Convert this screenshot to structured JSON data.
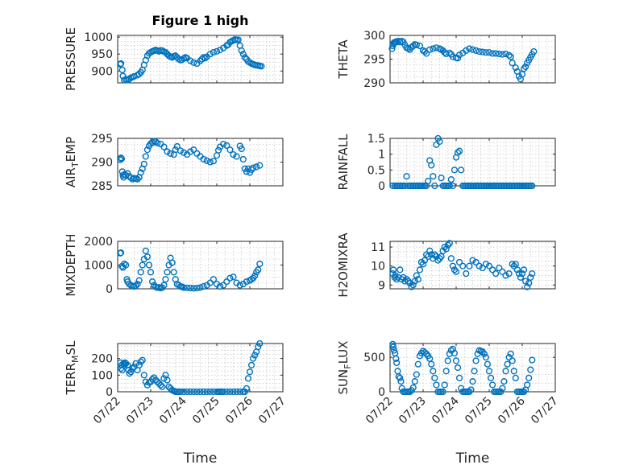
{
  "style": {
    "marker_color": "#0072BD",
    "axis_color": "#262626",
    "grid_color": "#b8b8b8"
  },
  "chart_data": [
    {
      "type": "scatter",
      "title": "Figure 1 high",
      "ylabel": "PRESSURE",
      "ylim": [
        865,
        1005
      ],
      "yticks": [
        900,
        950,
        1000
      ],
      "xlim": [
        0,
        5
      ],
      "xticks": [
        0,
        1,
        2,
        3,
        4,
        5
      ],
      "xticklabels": [],
      "grid": true,
      "x": [
        0.08,
        0.1,
        0.14,
        0.16,
        0.2,
        0.25,
        0.3,
        0.35,
        0.4,
        0.45,
        0.5,
        0.6,
        0.65,
        0.7,
        0.75,
        0.8,
        0.85,
        0.9,
        0.95,
        1.0,
        1.05,
        1.1,
        1.15,
        1.2,
        1.25,
        1.3,
        1.35,
        1.4,
        1.45,
        1.5,
        1.55,
        1.6,
        1.65,
        1.7,
        1.75,
        1.8,
        1.85,
        1.9,
        1.95,
        2.0,
        2.05,
        2.1,
        2.2,
        2.3,
        2.4,
        2.5,
        2.55,
        2.6,
        2.65,
        2.7,
        2.8,
        2.9,
        3.0,
        3.1,
        3.2,
        3.3,
        3.35,
        3.4,
        3.45,
        3.5,
        3.55,
        3.6,
        3.65,
        3.7,
        3.75,
        3.8,
        3.85,
        3.9,
        3.95,
        4.0,
        4.05,
        4.1,
        4.15,
        4.2,
        4.25,
        4.3,
        4.35
      ],
      "y": [
        920,
        922,
        903,
        885,
        873,
        875,
        873,
        876,
        880,
        882,
        884,
        888,
        891,
        896,
        903,
        918,
        932,
        945,
        952,
        955,
        958,
        960,
        962,
        960,
        958,
        961,
        960,
        957,
        955,
        950,
        945,
        942,
        940,
        943,
        945,
        940,
        935,
        932,
        933,
        937,
        940,
        938,
        930,
        925,
        922,
        930,
        935,
        940,
        938,
        942,
        950,
        955,
        958,
        962,
        968,
        975,
        978,
        985,
        988,
        990,
        993,
        992,
        992,
        975,
        960,
        950,
        940,
        935,
        928,
        925,
        922,
        920,
        918,
        917,
        916,
        915,
        914
      ]
    },
    {
      "type": "scatter",
      "ylabel": "THETA",
      "ylim": [
        290,
        300
      ],
      "yticks": [
        290,
        295,
        300
      ],
      "xlim": [
        0,
        5
      ],
      "xticks": [
        0,
        1,
        2,
        3,
        4,
        5
      ],
      "xticklabels": [],
      "grid": true,
      "x": [
        0.06,
        0.08,
        0.1,
        0.12,
        0.15,
        0.18,
        0.2,
        0.25,
        0.3,
        0.35,
        0.4,
        0.45,
        0.5,
        0.55,
        0.6,
        0.65,
        0.7,
        0.75,
        0.8,
        0.9,
        1.0,
        1.05,
        1.1,
        1.2,
        1.3,
        1.4,
        1.5,
        1.55,
        1.6,
        1.65,
        1.7,
        1.8,
        1.85,
        1.9,
        2.0,
        2.05,
        2.1,
        2.2,
        2.3,
        2.4,
        2.5,
        2.6,
        2.7,
        2.8,
        2.9,
        3.0,
        3.1,
        3.2,
        3.3,
        3.4,
        3.5,
        3.6,
        3.65,
        3.7,
        3.8,
        3.85,
        3.9,
        3.95,
        4.0,
        4.05,
        4.1,
        4.15,
        4.2,
        4.25,
        4.3,
        4.35
      ],
      "y": [
        297.2,
        297.8,
        298.2,
        298.5,
        298.5,
        298.7,
        298.6,
        298.8,
        298.6,
        298.8,
        298.6,
        298,
        297.4,
        297.2,
        297,
        297.5,
        297.8,
        298.1,
        298,
        297.8,
        296.8,
        296.6,
        296.2,
        297.0,
        297.2,
        297.4,
        297.2,
        297.0,
        296.8,
        296.4,
        296.1,
        296.3,
        296.0,
        295.5,
        295.3,
        295.2,
        295.9,
        296.3,
        296.8,
        297.2,
        297.0,
        296.8,
        296.6,
        296.5,
        296.4,
        296.4,
        296.2,
        296.2,
        296.1,
        296.0,
        296.1,
        295.8,
        295.5,
        294.2,
        293.2,
        292.4,
        291.4,
        290.8,
        291.8,
        293.0,
        293.4,
        294.2,
        294.8,
        295.4,
        296.0,
        296.6
      ]
    },
    {
      "type": "scatter",
      "ylabel": "AIR",
      "ylabel_sub": "T",
      "ylabel_tail": "EMP",
      "ylim": [
        285,
        295
      ],
      "yticks": [
        285,
        290,
        295
      ],
      "xlim": [
        0,
        5
      ],
      "xticks": [
        0,
        1,
        2,
        3,
        4,
        5
      ],
      "xticklabels": [],
      "grid": true,
      "x": [
        0.08,
        0.1,
        0.12,
        0.14,
        0.16,
        0.18,
        0.2,
        0.25,
        0.3,
        0.35,
        0.4,
        0.45,
        0.5,
        0.55,
        0.6,
        0.65,
        0.7,
        0.75,
        0.8,
        0.85,
        0.9,
        0.95,
        1.0,
        1.05,
        1.1,
        1.15,
        1.2,
        1.3,
        1.4,
        1.5,
        1.6,
        1.7,
        1.75,
        1.8,
        1.9,
        2.0,
        2.1,
        2.2,
        2.3,
        2.4,
        2.5,
        2.6,
        2.7,
        2.8,
        2.9,
        3.0,
        3.05,
        3.1,
        3.2,
        3.3,
        3.4,
        3.5,
        3.6,
        3.7,
        3.75,
        3.8,
        3.85,
        3.9,
        3.95,
        4.0,
        4.05,
        4.1,
        4.2,
        4.3
      ],
      "y": [
        290.5,
        290.9,
        290.7,
        288,
        287.2,
        286.8,
        287.4,
        287.2,
        287.6,
        287,
        286.7,
        286.4,
        286.6,
        286.5,
        286.4,
        286.8,
        287.8,
        288.6,
        289.6,
        291.2,
        292.6,
        293.4,
        293.9,
        294.1,
        294.4,
        294.3,
        294.0,
        293.8,
        293.2,
        292.2,
        291.8,
        291.6,
        292.6,
        293.3,
        292.4,
        292.0,
        291.6,
        292.2,
        292.6,
        291.8,
        291.2,
        290.6,
        290.3,
        290.0,
        290.2,
        291.4,
        292.5,
        293.2,
        293.8,
        293.5,
        292.6,
        291.6,
        291.2,
        293.4,
        292.8,
        290.6,
        288.6,
        288.0,
        288.6,
        287.8,
        288.4,
        288.8,
        289.0,
        289.3
      ]
    },
    {
      "type": "scatter",
      "ylabel": "RAINFALL",
      "ylim": [
        0,
        1.5
      ],
      "yticks": [
        0,
        0.5,
        1,
        1.5
      ],
      "xlim": [
        0,
        5
      ],
      "xticks": [
        0,
        1,
        2,
        3,
        4,
        5
      ],
      "xticklabels": [],
      "grid": true,
      "x": [
        0.08,
        0.15,
        0.2,
        0.25,
        0.3,
        0.35,
        0.4,
        0.45,
        0.5,
        0.55,
        0.6,
        0.65,
        0.7,
        0.75,
        0.8,
        0.85,
        0.9,
        0.95,
        1.0,
        1.05,
        1.1,
        1.15,
        1.2,
        1.25,
        1.3,
        1.35,
        1.4,
        1.45,
        1.5,
        1.55,
        1.6,
        1.65,
        1.7,
        1.75,
        1.8,
        1.85,
        1.9,
        1.95,
        2.0,
        2.05,
        2.1,
        2.15,
        2.2,
        2.25,
        2.3,
        2.35,
        2.4,
        2.45,
        2.5,
        2.55,
        2.6,
        2.65,
        2.7,
        2.75,
        2.8,
        2.85,
        2.9,
        2.95,
        3.0,
        3.05,
        3.1,
        3.15,
        3.2,
        3.25,
        3.3,
        3.35,
        3.4,
        3.45,
        3.5,
        3.55,
        3.6,
        3.65,
        3.7,
        3.75,
        3.8,
        3.85,
        3.9,
        3.95,
        4.0,
        4.05,
        4.1,
        4.15,
        4.2,
        4.25,
        4.3
      ],
      "y": [
        0,
        0,
        0,
        0,
        0,
        0,
        0,
        0,
        0.3,
        0,
        0,
        0,
        0,
        0,
        0,
        0,
        0,
        0,
        0,
        0,
        0,
        0.15,
        0.8,
        0.65,
        0.3,
        0,
        1.3,
        1.5,
        1.4,
        0.25,
        0,
        0,
        0,
        0,
        0,
        0.2,
        0,
        0.5,
        0.9,
        1.05,
        1.1,
        0.5,
        0,
        0,
        0,
        0,
        0,
        0,
        0,
        0,
        0,
        0,
        0,
        0,
        0,
        0,
        0,
        0,
        0,
        0,
        0,
        0,
        0,
        0,
        0,
        0,
        0,
        0,
        0,
        0,
        0,
        0,
        0,
        0,
        0,
        0,
        0,
        0,
        0,
        0,
        0,
        0,
        0,
        0,
        0
      ]
    },
    {
      "type": "scatter",
      "ylabel": "MIXDEPTH",
      "ylim": [
        0,
        2000
      ],
      "yticks": [
        0,
        1000,
        2000
      ],
      "xlim": [
        0,
        5
      ],
      "xticks": [
        0,
        1,
        2,
        3,
        4,
        5
      ],
      "xticklabels": [],
      "grid": true,
      "x": [
        0.08,
        0.1,
        0.13,
        0.16,
        0.2,
        0.25,
        0.28,
        0.3,
        0.35,
        0.4,
        0.45,
        0.5,
        0.55,
        0.6,
        0.65,
        0.7,
        0.75,
        0.8,
        0.85,
        0.9,
        0.95,
        1.0,
        1.05,
        1.1,
        1.15,
        1.2,
        1.25,
        1.3,
        1.35,
        1.4,
        1.45,
        1.5,
        1.55,
        1.6,
        1.65,
        1.7,
        1.75,
        1.8,
        1.85,
        1.9,
        1.95,
        2.0,
        2.1,
        2.2,
        2.3,
        2.4,
        2.5,
        2.6,
        2.7,
        2.8,
        2.9,
        3.0,
        3.1,
        3.2,
        3.3,
        3.4,
        3.5,
        3.6,
        3.7,
        3.8,
        3.9,
        4.0,
        4.05,
        4.1,
        4.15,
        4.2,
        4.25,
        4.3
      ],
      "y": [
        1500,
        1520,
        950,
        900,
        1050,
        1000,
        400,
        300,
        200,
        150,
        120,
        100,
        130,
        200,
        350,
        700,
        1000,
        1250,
        1600,
        1350,
        1000,
        700,
        300,
        150,
        80,
        50,
        60,
        30,
        50,
        150,
        400,
        700,
        1000,
        1300,
        1100,
        700,
        400,
        200,
        150,
        100,
        80,
        50,
        40,
        30,
        20,
        30,
        50,
        100,
        150,
        250,
        400,
        200,
        100,
        150,
        300,
        450,
        500,
        250,
        150,
        200,
        300,
        350,
        400,
        450,
        550,
        700,
        800,
        1050
      ]
    },
    {
      "type": "scatter",
      "ylabel": "H2OMIXRA",
      "ylim": [
        8.8,
        11.3
      ],
      "yticks": [
        9,
        10,
        11
      ],
      "xlim": [
        0,
        5
      ],
      "xticks": [
        0,
        1,
        2,
        3,
        4,
        5
      ],
      "xticklabels": [],
      "grid": true,
      "x": [
        0.08,
        0.1,
        0.14,
        0.16,
        0.2,
        0.25,
        0.3,
        0.35,
        0.4,
        0.45,
        0.5,
        0.55,
        0.6,
        0.65,
        0.7,
        0.75,
        0.8,
        0.85,
        0.9,
        0.95,
        1.0,
        1.05,
        1.1,
        1.15,
        1.2,
        1.25,
        1.3,
        1.35,
        1.4,
        1.45,
        1.5,
        1.55,
        1.6,
        1.65,
        1.7,
        1.75,
        1.8,
        1.85,
        1.9,
        1.95,
        2.0,
        2.1,
        2.2,
        2.3,
        2.4,
        2.5,
        2.6,
        2.7,
        2.8,
        2.9,
        3.0,
        3.1,
        3.2,
        3.3,
        3.4,
        3.5,
        3.6,
        3.7,
        3.75,
        3.8,
        3.85,
        3.9,
        3.95,
        4.0,
        4.05,
        4.1,
        4.15,
        4.2,
        4.25,
        4.3
      ],
      "y": [
        9.6,
        9.8,
        9.4,
        9.5,
        9.3,
        9.4,
        9.8,
        9.3,
        9.4,
        9.2,
        9.3,
        9.2,
        9.1,
        8.9,
        9.0,
        9.2,
        9.5,
        9.3,
        9.8,
        10.2,
        10.1,
        10.3,
        10.6,
        10.5,
        10.8,
        10.6,
        10.4,
        10.6,
        10.5,
        10.3,
        10.4,
        10.5,
        10.8,
        11.0,
        10.9,
        11.1,
        11.2,
        10.4,
        10.0,
        9.8,
        9.7,
        10.2,
        10.0,
        9.6,
        10.0,
        10.3,
        10.2,
        10.0,
        9.9,
        10.1,
        10.0,
        9.8,
        9.6,
        9.9,
        9.7,
        9.5,
        9.6,
        10.1,
        10.0,
        10.1,
        9.8,
        9.6,
        9.4,
        9.6,
        9.8,
        9.2,
        8.9,
        9.1,
        9.4,
        9.6
      ]
    },
    {
      "type": "scatter",
      "ylabel": "TERR",
      "ylabel_sub": "M",
      "ylabel_tail": "SL",
      "ylim": [
        0,
        290
      ],
      "yticks": [
        0,
        100,
        200
      ],
      "xlim": [
        0,
        5
      ],
      "xticks": [
        0,
        1,
        2,
        3,
        4,
        5
      ],
      "xticklabels": [
        "07/22",
        "07/23",
        "07/24",
        "07/25",
        "07/26",
        "07/27"
      ],
      "xlabel": "Time",
      "grid": true,
      "x": [
        0.08,
        0.1,
        0.12,
        0.14,
        0.18,
        0.2,
        0.22,
        0.25,
        0.3,
        0.33,
        0.36,
        0.4,
        0.45,
        0.5,
        0.55,
        0.6,
        0.65,
        0.7,
        0.75,
        0.8,
        0.85,
        0.9,
        0.95,
        1.0,
        1.05,
        1.1,
        1.15,
        1.2,
        1.25,
        1.3,
        1.35,
        1.4,
        1.45,
        1.5,
        1.55,
        1.6,
        1.65,
        1.7,
        1.75,
        1.8,
        1.85,
        1.9,
        2.0,
        2.1,
        2.2,
        2.3,
        2.4,
        2.5,
        2.6,
        2.7,
        2.8,
        2.9,
        3.0,
        3.05,
        3.1,
        3.15,
        3.2,
        3.3,
        3.4,
        3.5,
        3.6,
        3.7,
        3.8,
        3.85,
        3.9,
        3.95,
        4.0,
        4.05,
        4.1,
        4.15,
        4.2,
        4.25,
        4.3
      ],
      "y": [
        175,
        140,
        160,
        130,
        170,
        160,
        175,
        170,
        160,
        130,
        110,
        120,
        140,
        150,
        170,
        130,
        160,
        180,
        190,
        100,
        60,
        40,
        55,
        60,
        75,
        85,
        70,
        60,
        50,
        40,
        30,
        80,
        100,
        70,
        30,
        20,
        10,
        5,
        0,
        0,
        0,
        0,
        0,
        0,
        0,
        0,
        0,
        0,
        0,
        0,
        0,
        0,
        0,
        0,
        0,
        0,
        0,
        0,
        0,
        0,
        0,
        0,
        0,
        0,
        20,
        80,
        120,
        160,
        200,
        220,
        240,
        270,
        290
      ]
    },
    {
      "type": "scatter",
      "ylabel": "SUN",
      "ylabel_sub": "F",
      "ylabel_tail": "LUX",
      "ylim": [
        0,
        700
      ],
      "yticks": [
        0,
        500
      ],
      "xlim": [
        0,
        5
      ],
      "xticks": [
        0,
        1,
        2,
        3,
        4,
        5
      ],
      "xticklabels": [
        "07/22",
        "07/23",
        "07/24",
        "07/25",
        "07/26",
        "07/27"
      ],
      "xlabel": "Time",
      "grid": true,
      "x": [
        0.08,
        0.1,
        0.12,
        0.15,
        0.18,
        0.2,
        0.23,
        0.26,
        0.3,
        0.33,
        0.36,
        0.4,
        0.45,
        0.5,
        0.55,
        0.6,
        0.65,
        0.7,
        0.75,
        0.8,
        0.85,
        0.9,
        0.95,
        1.0,
        1.05,
        1.1,
        1.15,
        1.2,
        1.25,
        1.3,
        1.35,
        1.4,
        1.45,
        1.5,
        1.55,
        1.6,
        1.65,
        1.7,
        1.75,
        1.8,
        1.85,
        1.9,
        1.95,
        2.0,
        2.05,
        2.1,
        2.15,
        2.2,
        2.25,
        2.3,
        2.35,
        2.4,
        2.45,
        2.5,
        2.55,
        2.6,
        2.65,
        2.7,
        2.75,
        2.8,
        2.85,
        2.9,
        2.95,
        3.0,
        3.05,
        3.1,
        3.15,
        3.2,
        3.25,
        3.3,
        3.35,
        3.4,
        3.45,
        3.5,
        3.55,
        3.6,
        3.65,
        3.7,
        3.75,
        3.8,
        3.85,
        3.9,
        3.95,
        4.0,
        4.05,
        4.1,
        4.15,
        4.2,
        4.25,
        4.3
      ],
      "y": [
        690,
        650,
        600,
        560,
        480,
        420,
        300,
        220,
        200,
        150,
        50,
        0,
        0,
        0,
        0,
        0,
        20,
        60,
        150,
        250,
        400,
        520,
        560,
        590,
        570,
        550,
        520,
        480,
        400,
        300,
        200,
        100,
        0,
        0,
        0,
        0,
        100,
        300,
        450,
        550,
        600,
        620,
        560,
        450,
        350,
        200,
        50,
        0,
        0,
        0,
        0,
        0,
        30,
        150,
        300,
        450,
        550,
        600,
        590,
        580,
        550,
        500,
        400,
        300,
        200,
        100,
        0,
        0,
        0,
        0,
        0,
        50,
        150,
        300,
        400,
        500,
        550,
        450,
        300,
        200,
        0,
        0,
        0,
        0,
        0,
        30,
        100,
        200,
        320,
        460
      ]
    }
  ]
}
